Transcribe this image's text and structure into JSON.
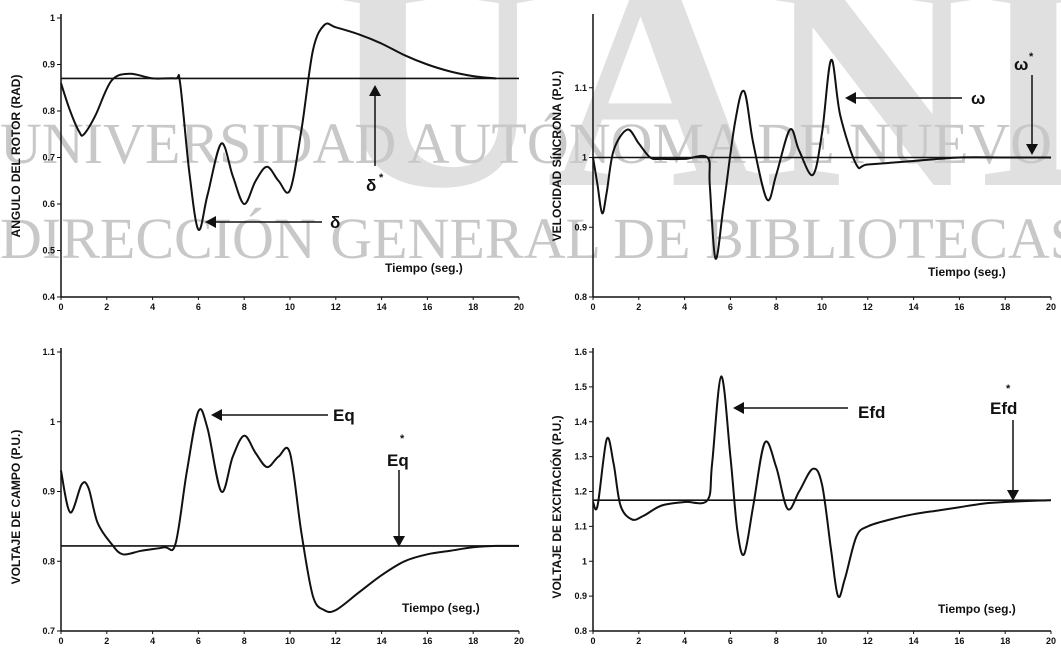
{
  "watermark": {
    "big": "UANL",
    "line1": "UNIVERSIDAD AUTÓNOMA DE NUEVO LEÓN",
    "line2": "DIRECCIÓN GENERAL DE BIBLIOTECAS"
  },
  "colors": {
    "line": "#111111",
    "watermark": "#c8c8c8",
    "background": "#ffffff"
  },
  "chart_data": [
    {
      "type": "line",
      "ylabel": "ANGULO DEL ROTOR (RAD)",
      "time_label": "Tiempo (seg.)",
      "xlim": [
        0,
        20
      ],
      "ylim": [
        0.4,
        1.0
      ],
      "xticks": [
        "0",
        "2",
        "4",
        "6",
        "8",
        "10",
        "12",
        "14",
        "16",
        "18",
        "20"
      ],
      "yticks": [
        "0.4",
        "0.5",
        "0.6",
        "0.7",
        "0.8",
        "0.9",
        "1"
      ],
      "series": [
        {
          "name": "δ",
          "x": [
            0,
            0.4,
            0.8,
            1.0,
            1.5,
            2.2,
            3.0,
            4.0,
            5.0,
            5.2,
            5.6,
            6.0,
            6.4,
            7.0,
            7.5,
            8.0,
            8.5,
            9.0,
            9.5,
            10.0,
            10.5,
            11.0,
            11.5,
            12.0,
            13.0,
            14.0,
            15.0,
            16.0,
            17.0,
            18.0,
            19.0
          ],
          "y": [
            0.86,
            0.8,
            0.755,
            0.75,
            0.79,
            0.865,
            0.88,
            0.87,
            0.87,
            0.86,
            0.67,
            0.545,
            0.62,
            0.73,
            0.66,
            0.6,
            0.65,
            0.68,
            0.65,
            0.63,
            0.76,
            0.93,
            0.985,
            0.98,
            0.965,
            0.945,
            0.92,
            0.9,
            0.885,
            0.875,
            0.87
          ]
        },
        {
          "name": "δ*",
          "x": [
            0,
            20
          ],
          "y": [
            0.87,
            0.87
          ]
        }
      ],
      "annotations": [
        {
          "text": "δ"
        },
        {
          "text": "δ",
          "sup": "*"
        }
      ]
    },
    {
      "type": "line",
      "ylabel": "VELOCIDAD SÍNCRONA (P.U.)",
      "time_label": "Tiempo (seg.)",
      "xlim": [
        0,
        20
      ],
      "ylim": [
        0.8,
        1.2
      ],
      "xticks": [
        "0",
        "2",
        "4",
        "6",
        "8",
        "10",
        "12",
        "14",
        "16",
        "18",
        "20"
      ],
      "yticks": [
        "0.8",
        "0.9",
        "1",
        "1.1"
      ],
      "series": [
        {
          "name": "ω",
          "x": [
            0,
            0.2,
            0.4,
            0.6,
            0.9,
            1.5,
            2.0,
            2.5,
            3.0,
            4.0,
            5.0,
            5.1,
            5.35,
            5.7,
            6.2,
            6.6,
            7.0,
            7.6,
            8.0,
            8.6,
            9.0,
            9.6,
            10.0,
            10.4,
            10.8,
            11.5,
            12.0,
            14.0,
            16.0,
            18.0,
            20.0
          ],
          "y": [
            1.0,
            0.96,
            0.92,
            0.95,
            1.01,
            1.04,
            1.02,
            1.0,
            0.998,
            0.998,
            1.0,
            0.96,
            0.855,
            0.93,
            1.05,
            1.095,
            1.02,
            0.94,
            0.975,
            1.04,
            1.01,
            0.975,
            1.035,
            1.14,
            1.06,
            0.99,
            0.99,
            0.995,
            1.0,
            1.0,
            1.0
          ]
        },
        {
          "name": "ω*",
          "x": [
            0,
            20
          ],
          "y": [
            1.0,
            1.0
          ]
        }
      ],
      "annotations": [
        {
          "text": "ω"
        },
        {
          "text": "ω",
          "sup": "*"
        }
      ]
    },
    {
      "type": "line",
      "ylabel": "VOLTAJE DE CAMPO (P.U.)",
      "time_label": "Tiempo (seg.)",
      "xlim": [
        0,
        20
      ],
      "ylim": [
        0.7,
        1.1
      ],
      "xticks": [
        "0",
        "2",
        "4",
        "6",
        "8",
        "10",
        "12",
        "14",
        "16",
        "18",
        "20"
      ],
      "yticks": [
        "0.7",
        "0.8",
        "0.9",
        "1",
        "1.1"
      ],
      "series": [
        {
          "name": "Eq",
          "x": [
            0,
            0.4,
            0.9,
            1.2,
            1.6,
            2.2,
            2.7,
            3.5,
            4.5,
            5.0,
            5.5,
            6.0,
            6.4,
            7.0,
            7.5,
            8.0,
            8.5,
            9.0,
            9.5,
            10.0,
            10.5,
            11.0,
            11.5,
            12.0,
            13.0,
            14.0,
            15.0,
            16.0,
            17.0,
            18.0,
            19.0,
            20.0
          ],
          "y": [
            0.93,
            0.87,
            0.91,
            0.905,
            0.855,
            0.825,
            0.81,
            0.815,
            0.82,
            0.825,
            0.93,
            1.015,
            0.99,
            0.9,
            0.95,
            0.98,
            0.955,
            0.935,
            0.95,
            0.955,
            0.84,
            0.75,
            0.73,
            0.73,
            0.755,
            0.78,
            0.8,
            0.81,
            0.815,
            0.82,
            0.822,
            0.822
          ]
        },
        {
          "name": "Eq*",
          "x": [
            0,
            20
          ],
          "y": [
            0.822,
            0.822
          ]
        }
      ],
      "annotations": [
        {
          "text": "Eq"
        },
        {
          "text": "Eq",
          "sup": "*"
        }
      ]
    },
    {
      "type": "line",
      "ylabel": "VOLTAJE DE EXCITACIÓN (P.U.)",
      "time_label": "Tiempo (seg.)",
      "xlim": [
        0,
        20
      ],
      "ylim": [
        0.8,
        1.6
      ],
      "xticks": [
        "0",
        "2",
        "4",
        "6",
        "8",
        "10",
        "12",
        "14",
        "16",
        "18",
        "20"
      ],
      "yticks": [
        "0.8",
        "0.9",
        "1",
        "1.1",
        "1.2",
        "1.3",
        "1.4",
        "1.5",
        "1.6"
      ],
      "series": [
        {
          "name": "Efd",
          "x": [
            0,
            0.2,
            0.6,
            0.9,
            1.2,
            1.7,
            2.2,
            3.0,
            4.0,
            5.0,
            5.2,
            5.6,
            6.0,
            6.3,
            6.6,
            7.0,
            7.5,
            8.0,
            8.5,
            9.0,
            9.6,
            10.0,
            10.4,
            10.7,
            11.0,
            11.5,
            12.0,
            13.0,
            14.0,
            15.0,
            16.0,
            17.0,
            18.0,
            20.0
          ],
          "y": [
            1.17,
            1.16,
            1.35,
            1.28,
            1.16,
            1.12,
            1.13,
            1.16,
            1.17,
            1.175,
            1.28,
            1.53,
            1.3,
            1.09,
            1.02,
            1.16,
            1.34,
            1.27,
            1.15,
            1.2,
            1.265,
            1.22,
            1.03,
            0.9,
            0.95,
            1.07,
            1.1,
            1.12,
            1.135,
            1.145,
            1.155,
            1.165,
            1.17,
            1.175
          ]
        },
        {
          "name": "Efd*",
          "x": [
            0,
            20
          ],
          "y": [
            1.175,
            1.175
          ]
        }
      ],
      "annotations": [
        {
          "text": "Efd"
        },
        {
          "text": "Efd",
          "sup": "*"
        }
      ]
    }
  ]
}
